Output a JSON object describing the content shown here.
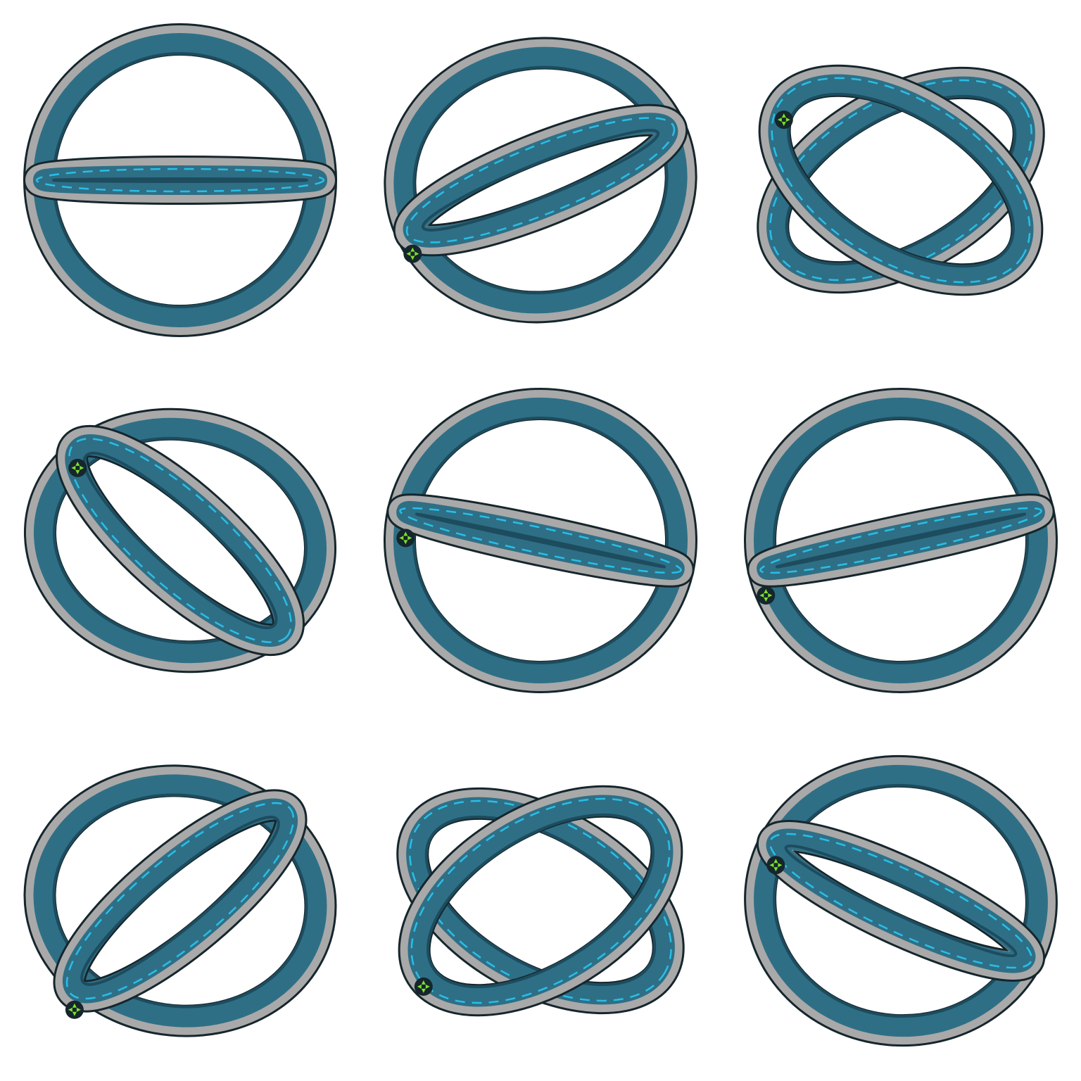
{
  "sheet": {
    "layout": "3x3 sprite grid",
    "background_color": "#ffffff",
    "frames": [
      {
        "id": "frame-1",
        "ring_a_roll_deg": 0,
        "ring_a_squash": 1.0,
        "ring_b_roll_deg": 0,
        "ring_b_squash": 0.06,
        "node_visible": false
      },
      {
        "id": "frame-2",
        "ring_a_roll_deg": -8,
        "ring_a_squash": 0.9,
        "ring_b_roll_deg": -22,
        "ring_b_squash": 0.22,
        "node_visible": true
      },
      {
        "id": "frame-3",
        "ring_a_roll_deg": -30,
        "ring_a_squash": 0.55,
        "ring_b_roll_deg": 32,
        "ring_b_squash": 0.55,
        "node_visible": true
      },
      {
        "id": "frame-4",
        "ring_a_roll_deg": 10,
        "ring_a_squash": 0.82,
        "ring_b_roll_deg": 42,
        "ring_b_squash": 0.3,
        "node_visible": true
      },
      {
        "id": "frame-5",
        "ring_a_roll_deg": 0,
        "ring_a_squash": 0.97,
        "ring_b_roll_deg": 12,
        "ring_b_squash": 0.07,
        "node_visible": true
      },
      {
        "id": "frame-6",
        "ring_a_roll_deg": 0,
        "ring_a_squash": 0.97,
        "ring_b_roll_deg": -12,
        "ring_b_squash": 0.07,
        "node_visible": true
      },
      {
        "id": "frame-7",
        "ring_a_roll_deg": 8,
        "ring_a_squash": 0.85,
        "ring_b_roll_deg": -40,
        "ring_b_squash": 0.28,
        "node_visible": true
      },
      {
        "id": "frame-8",
        "ring_a_roll_deg": 30,
        "ring_a_squash": 0.55,
        "ring_b_roll_deg": -32,
        "ring_b_squash": 0.55,
        "node_visible": true
      },
      {
        "id": "frame-9",
        "ring_a_roll_deg": 5,
        "ring_a_squash": 0.92,
        "ring_b_roll_deg": 25,
        "ring_b_squash": 0.2,
        "node_visible": true
      }
    ]
  },
  "colors": {
    "ring_face": "#2e6f86",
    "ring_face_dark": "#1d4c5e",
    "ring_edge_dark": "#15262c",
    "ring_rim_grey": "#a9a9a9",
    "ring_rim_light": "#d8d8d8",
    "glow_cyan": "#29c7f2",
    "node_green": "#7fe02a",
    "strut_grey": "#8c8c8c"
  },
  "icons": {
    "ring": "gyroscope-ring-icon",
    "node": "junction-node-icon"
  }
}
